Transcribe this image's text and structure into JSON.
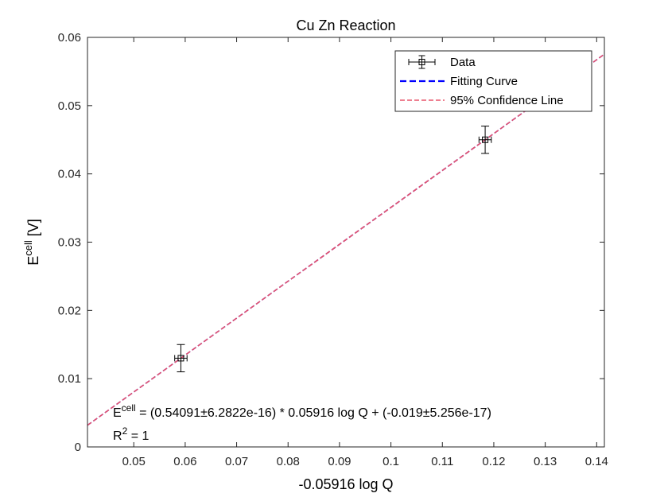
{
  "chart_data": {
    "type": "scatter",
    "title": "Cu Zn Reaction",
    "xlabel": "-0.05916 log Q",
    "ylabel": {
      "base": "E",
      "sup": "cell",
      "rest": " [V]"
    },
    "xlim": [
      0.041,
      0.1415
    ],
    "ylim": [
      0,
      0.06
    ],
    "x_ticks": [
      0.05,
      0.06,
      0.07,
      0.08,
      0.09,
      0.1,
      0.11,
      0.12,
      0.13,
      0.14
    ],
    "x_tick_labels": [
      "0.05",
      "0.06",
      "0.07",
      "0.08",
      "0.09",
      "0.1",
      "0.11",
      "0.12",
      "0.13",
      "0.14"
    ],
    "y_ticks": [
      0,
      0.01,
      0.02,
      0.03,
      0.04,
      0.05,
      0.06
    ],
    "y_tick_labels": [
      "0",
      "0.01",
      "0.02",
      "0.03",
      "0.04",
      "0.05",
      "0.06"
    ],
    "grid": false,
    "legend_position": "top-right",
    "series": [
      {
        "name": "Data",
        "kind": "errorbar",
        "x": [
          0.05916,
          0.11832
        ],
        "y": [
          0.013,
          0.045
        ],
        "y_err": [
          0.002,
          0.002
        ],
        "x_err": [
          0.0012,
          0.0012
        ],
        "color": "#000000"
      },
      {
        "name": "Fitting Curve",
        "kind": "line",
        "slope": 0.54091,
        "intercept": -0.019,
        "color": "#0000ff",
        "style": "dashed"
      },
      {
        "name": "95% Confidence Line",
        "kind": "line",
        "slope": 0.54091,
        "intercept": -0.019,
        "color": "#e8556b",
        "style": "dashed"
      }
    ],
    "annotations": {
      "equation": {
        "base": "E",
        "sup": "cell",
        "rest": " = (0.54091±6.2822e-16) * 0.05916 log Q + (-0.019±5.256e-17)"
      },
      "r_squared": {
        "base": "R",
        "sup": "2",
        "rest": " = 1"
      }
    }
  }
}
